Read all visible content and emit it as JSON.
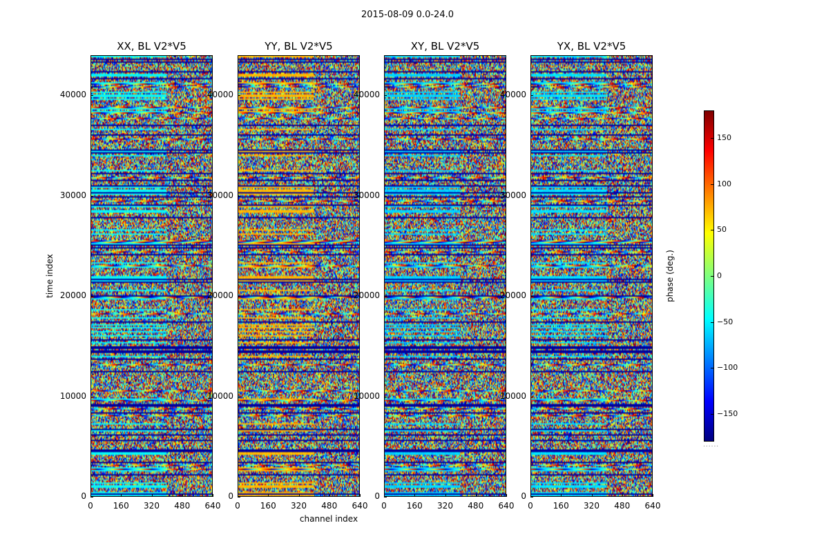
{
  "chart_data": {
    "type": "heatmap",
    "suptitle": "2015-08-09 0.0-24.0",
    "panels": [
      {
        "title": "XX, BL V2*V5",
        "seed": 11,
        "bias": -45
      },
      {
        "title": "YY, BL V2*V5",
        "seed": 23,
        "bias": 70
      },
      {
        "title": "XY, BL V2*V5",
        "seed": 37,
        "bias": -60
      },
      {
        "title": "YX, BL V2*V5",
        "seed": 51,
        "bias": -55
      }
    ],
    "xlabel": "channel index",
    "ylabel": "time index",
    "xlim": [
      0,
      640
    ],
    "ylim": [
      0,
      44000
    ],
    "xticks": [
      "0",
      "160",
      "320",
      "480",
      "640"
    ],
    "xtick_values": [
      0,
      160,
      320,
      480,
      640
    ],
    "yticks": [
      "0",
      "10000",
      "20000",
      "30000",
      "40000"
    ],
    "ytick_values": [
      0,
      10000,
      20000,
      30000,
      40000
    ],
    "colorbar": {
      "label": "phase (deg.)",
      "range": [
        -180,
        180
      ],
      "ticks": [
        "150",
        "100",
        "50",
        "0",
        "−50",
        "−100",
        "−150"
      ],
      "tick_values": [
        150,
        100,
        50,
        0,
        -50,
        -100,
        -150
      ],
      "colormap": "jet"
    }
  }
}
